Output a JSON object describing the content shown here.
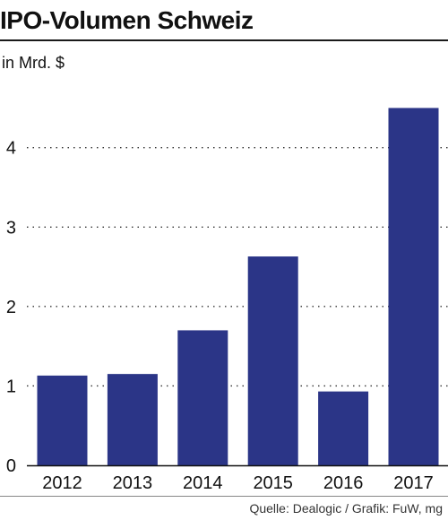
{
  "chart_data": {
    "type": "bar",
    "title": "IPO-Volumen Schweiz",
    "unit_label": "in Mrd. $",
    "categories": [
      "2012",
      "2013",
      "2014",
      "2015",
      "2016",
      "2017"
    ],
    "values": [
      1.13,
      1.15,
      1.7,
      2.63,
      0.93,
      4.5
    ],
    "ylim": [
      0,
      4.9
    ],
    "yticks": [
      "0",
      "1",
      "2",
      "3",
      "4"
    ],
    "grid": "dotted horizontal",
    "bar_color": "#2b3587",
    "source": "Quelle: Dealogic / Grafik: FuW, mg"
  }
}
